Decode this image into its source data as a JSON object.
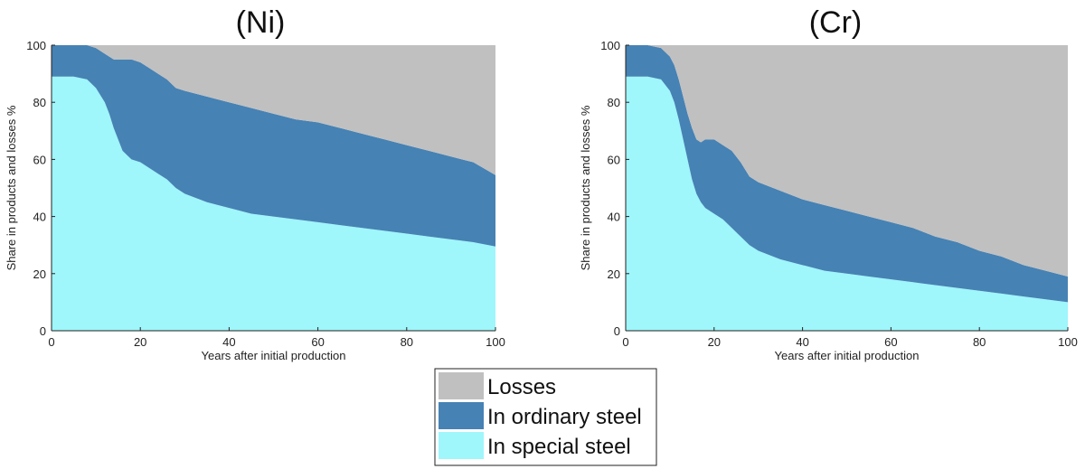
{
  "legend": [
    {
      "label": "Losses",
      "color": "#c0c0c0"
    },
    {
      "label": "In ordinary steel",
      "color": "#4682b4"
    },
    {
      "label": "In special steel",
      "color": "#9ff6fb"
    }
  ],
  "chart_data": [
    {
      "type": "area",
      "stacked": true,
      "title": "(Ni)",
      "xlabel": "Years after initial production",
      "ylabel": "Share in products and losses %",
      "xlim": [
        0,
        100
      ],
      "ylim": [
        0,
        100
      ],
      "xticks": [
        0,
        20,
        40,
        60,
        80,
        100
      ],
      "yticks": [
        0,
        20,
        40,
        60,
        80,
        100
      ],
      "x": [
        1,
        5,
        8,
        10,
        12,
        13,
        14,
        15,
        16,
        18,
        20,
        22,
        24,
        26,
        28,
        30,
        35,
        40,
        45,
        50,
        55,
        60,
        65,
        70,
        75,
        80,
        85,
        90,
        95,
        100
      ],
      "series": [
        {
          "name": "In special steel",
          "color": "#9ff6fb",
          "values": [
            89,
            89,
            88,
            85,
            80,
            76,
            71,
            67,
            63,
            60,
            59,
            57,
            55,
            53,
            50,
            48,
            45,
            43,
            41,
            40,
            39,
            38,
            37,
            36,
            35,
            34,
            33,
            32,
            31,
            29.5
          ]
        },
        {
          "name": "In ordinary steel",
          "color": "#4682b4",
          "values": [
            11,
            11,
            12,
            14,
            17,
            20,
            24,
            28,
            32,
            35,
            35,
            35,
            35,
            35,
            35,
            36,
            37,
            37,
            37,
            36,
            35,
            35,
            34,
            33,
            32,
            31,
            30,
            29,
            28,
            25
          ]
        },
        {
          "name": "Losses",
          "color": "#c0c0c0",
          "values": [
            0,
            0,
            0,
            1,
            3,
            4,
            5,
            5,
            5,
            5,
            6,
            8,
            10,
            12,
            15,
            16,
            18,
            20,
            22,
            24,
            26,
            27,
            29,
            31,
            33,
            35,
            37,
            39,
            41,
            45.5
          ]
        }
      ]
    },
    {
      "type": "area",
      "stacked": true,
      "title": "(Cr)",
      "xlabel": "Years after initial production",
      "ylabel": "Share in products and losses %",
      "xlim": [
        0,
        100
      ],
      "ylim": [
        0,
        100
      ],
      "xticks": [
        0,
        20,
        40,
        60,
        80,
        100
      ],
      "yticks": [
        0,
        20,
        40,
        60,
        80,
        100
      ],
      "x": [
        1,
        5,
        8,
        10,
        11,
        12,
        13,
        14,
        15,
        16,
        17,
        18,
        20,
        22,
        24,
        26,
        28,
        30,
        35,
        40,
        45,
        50,
        55,
        60,
        65,
        70,
        75,
        80,
        85,
        90,
        95,
        100
      ],
      "series": [
        {
          "name": "In special steel",
          "color": "#9ff6fb",
          "values": [
            89,
            89,
            88,
            84,
            80,
            74,
            67,
            60,
            53,
            48,
            45,
            43,
            41,
            39,
            36,
            33,
            30,
            28,
            25,
            23,
            21,
            20,
            19,
            18,
            17,
            16,
            15,
            14,
            13,
            12,
            11,
            10
          ]
        },
        {
          "name": "In ordinary steel",
          "color": "#4682b4",
          "values": [
            11,
            11,
            11,
            12,
            13,
            14,
            15,
            16,
            18,
            19,
            21,
            24,
            26,
            26,
            27,
            26,
            24,
            24,
            24,
            23,
            23,
            22,
            21,
            20,
            19,
            17,
            16,
            14,
            13,
            11,
            10,
            9
          ]
        },
        {
          "name": "Losses",
          "color": "#c0c0c0",
          "values": [
            0,
            0,
            1,
            4,
            7,
            12,
            18,
            24,
            29,
            33,
            34,
            33,
            33,
            35,
            37,
            41,
            46,
            48,
            51,
            54,
            56,
            58,
            60,
            62,
            64,
            67,
            69,
            72,
            74,
            77,
            79,
            81
          ]
        }
      ]
    }
  ]
}
